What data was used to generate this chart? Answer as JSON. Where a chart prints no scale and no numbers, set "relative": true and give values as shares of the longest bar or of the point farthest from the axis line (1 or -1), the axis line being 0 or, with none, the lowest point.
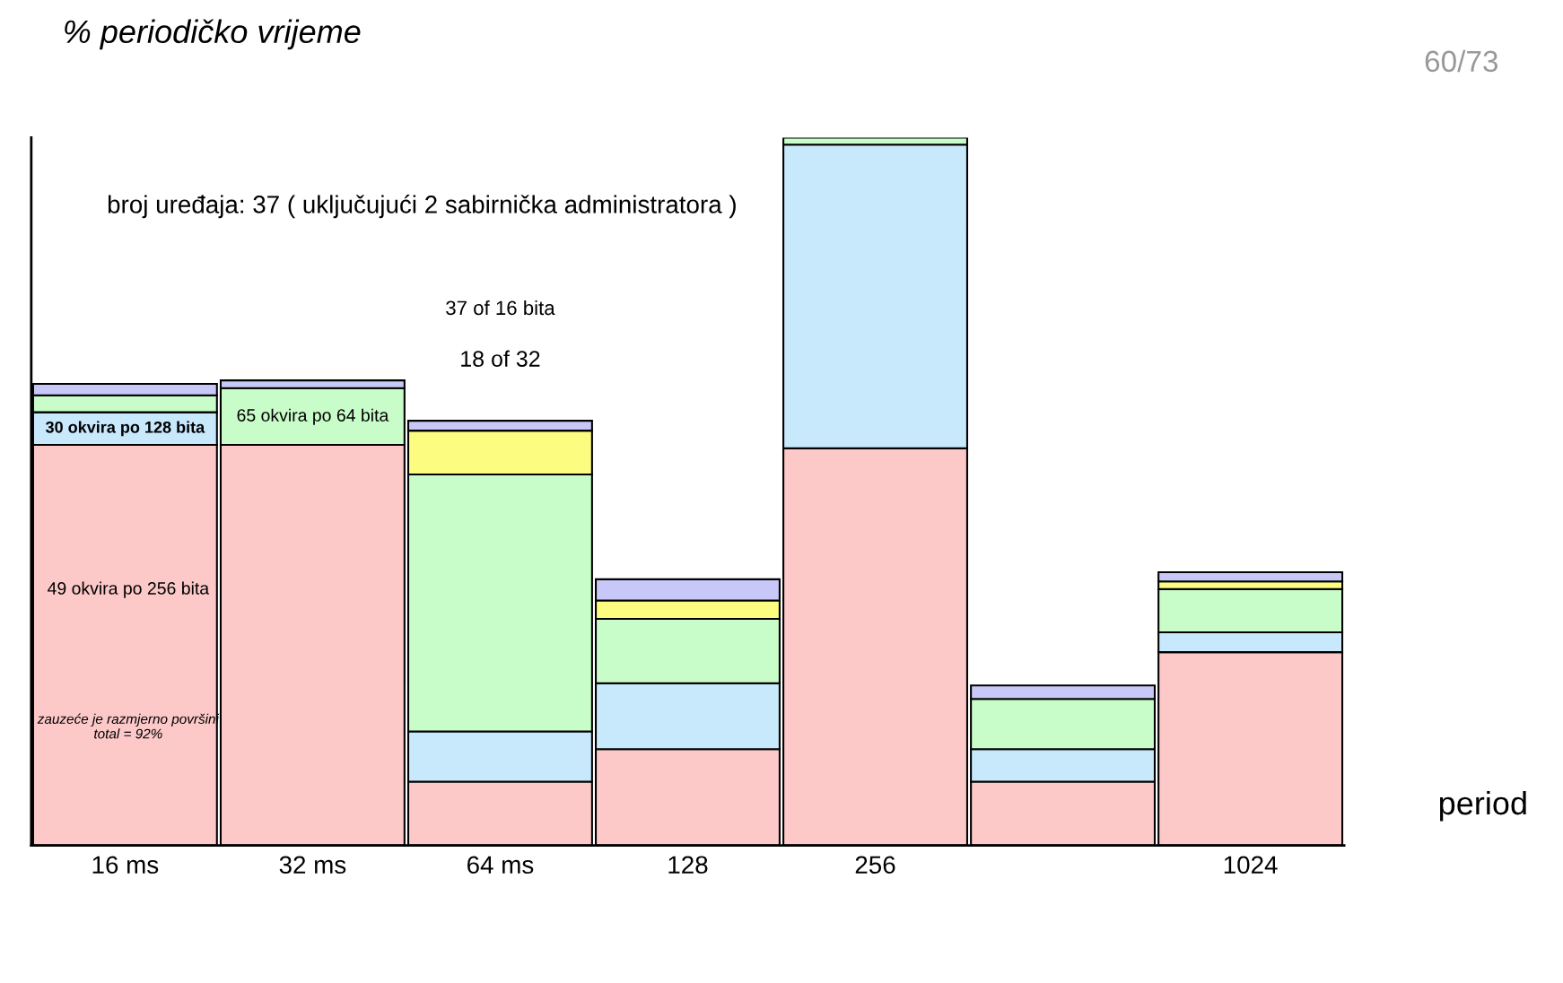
{
  "chart_data": {
    "type": "bar",
    "stacked": true,
    "relative": true,
    "ylabel": "% periodičko vrijeme",
    "xlabel": "period",
    "categories": [
      "16 ms",
      "32 ms",
      "64 ms",
      "128",
      "256",
      null,
      "1024"
    ],
    "series": [
      {
        "color": "#fcc8c8",
        "values": [
          0.566,
          0.566,
          0.09,
          0.136,
          0.561,
          0.09,
          0.273
        ]
      },
      {
        "color": "#c8e8fc",
        "values": [
          0.046,
          0,
          0.071,
          0.093,
          0.429,
          0.046,
          0.028
        ]
      },
      {
        "color": "#c8fcc8",
        "values": [
          0.024,
          0.08,
          0.363,
          0.091,
          0.01,
          0.071,
          0.061
        ]
      },
      {
        "color": "#fcfc80",
        "values": [
          0,
          0,
          0.062,
          0.026,
          0,
          0,
          0.011
        ]
      },
      {
        "color": "#c8c8f8",
        "values": [
          0.016,
          0.011,
          0.014,
          0.03,
          0,
          0.019,
          0.013
        ]
      }
    ],
    "annotations": [
      "broj uređaja: 37 ( uključujući 2 sabirnička administratora )",
      "30 okvira po 128 bita",
      "65 okvira po 64 bita",
      "37 of 16 bita",
      "18 of 32",
      "49 okvira po 256 bita",
      "zauzeće je razmjerno površini\ntotal = 92%",
      "60/73"
    ]
  }
}
